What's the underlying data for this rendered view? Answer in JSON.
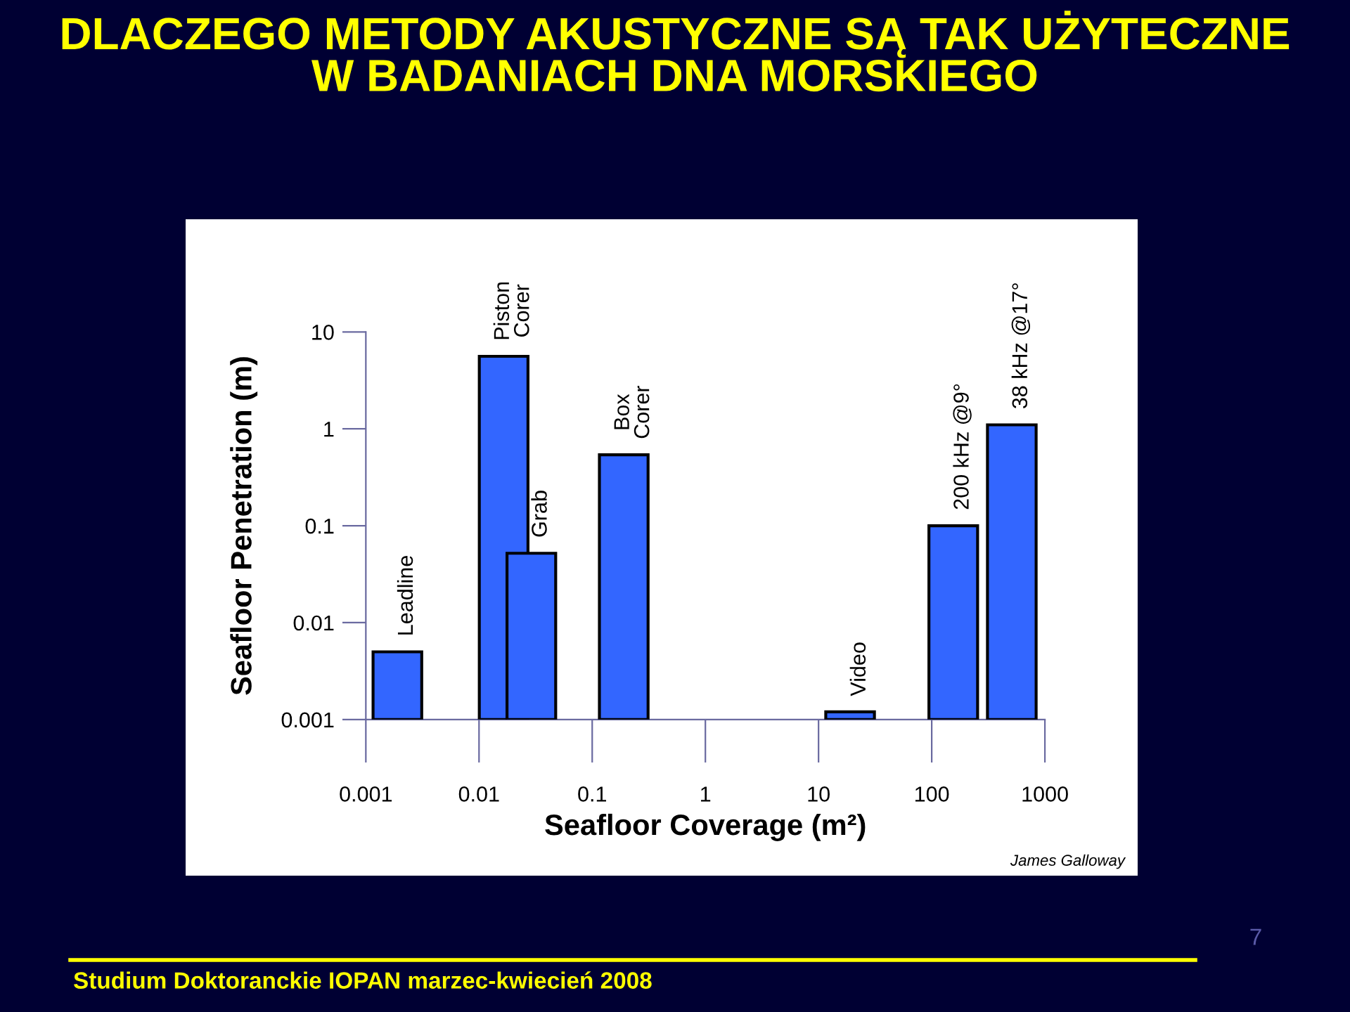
{
  "chart_data": {
    "type": "bar",
    "title": "DLACZEGO METODY AKUSTYCZNE SĄ TAK UŻYTECZNE\nW BADANIACH DNA MORSKIEGO",
    "xlabel": "Seafloor Coverage (m²)",
    "ylabel": "Seafloor Penetration (m)",
    "x": [
      0.0019,
      0.0165,
      0.029,
      0.19,
      19,
      155,
      510
    ],
    "values": [
      0.005,
      5.6,
      0.052,
      0.54,
      0.0012,
      0.1,
      1.1
    ],
    "color": "#3366ff",
    "log": "xy",
    "grid": false,
    "xlim": [
      0.001,
      1000
    ],
    "xticks": [
      0.001,
      0.01,
      0.1,
      1,
      10,
      100,
      1000
    ],
    "ylim": [
      0.001,
      10
    ],
    "yticks": [
      0.001,
      0.01,
      0.1,
      1,
      10
    ],
    "annotations": [
      {
        "text": "Leadline",
        "x": 0.0019,
        "y": 0.005
      },
      {
        "text": "Piston\nCorer",
        "x": 0.0165,
        "y": 5.6
      },
      {
        "text": "Grab",
        "x": 0.029,
        "y": 0.052
      },
      {
        "text": "Box\nCorer",
        "x": 0.19,
        "y": 0.54
      },
      {
        "text": "Video",
        "x": 19,
        "y": 0.0012
      },
      {
        "text": "200 kHz @9°",
        "x": 155,
        "y": 0.1
      },
      {
        "text": "38 kHz @17°",
        "x": 510,
        "y": 1.1
      },
      "James Galloway",
      "Studium Doktoranckie IOPAN marzec-kwiecień 2008",
      "7"
    ]
  }
}
